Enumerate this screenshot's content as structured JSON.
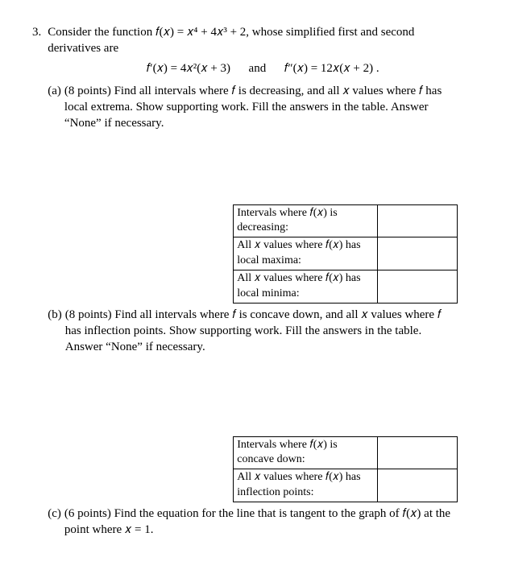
{
  "problem": {
    "number": "3.",
    "stem_line1": "Consider the function 𝑓(𝑥) = 𝑥⁴ + 4𝑥³ + 2, whose simplified first and second",
    "stem_line2": "derivatives are",
    "deriv1": "𝑓′(𝑥) = 4𝑥²(𝑥 + 3)",
    "and": "and",
    "deriv2": "𝑓″(𝑥) =  12𝑥(𝑥 + 2) ."
  },
  "partA": {
    "label": "(a)",
    "points": "(8 points)",
    "text1": "Find all intervals where 𝑓 is decreasing, and all 𝑥 values where 𝑓 has",
    "text2": "local extrema. Show supporting work. Fill the answers in the table. Answer",
    "text3": "“None” if necessary.",
    "table": {
      "row1": "Intervals where 𝑓(𝑥) is decreasing:",
      "row2": "All 𝑥 values where 𝑓(𝑥) has local maxima:",
      "row3": "All 𝑥 values where 𝑓(𝑥) has local minima:",
      "val1": "",
      "val2": "",
      "val3": ""
    }
  },
  "partB": {
    "label": "(b)",
    "points": "(8 points)",
    "text1": "Find all intervals where 𝑓 is concave down, and all 𝑥 values where 𝑓",
    "text2": "has inflection points. Show supporting work. Fill the answers in the table.",
    "text3": "Answer “None” if necessary.",
    "table": {
      "row1": "Intervals where 𝑓(𝑥) is concave down:",
      "row2": "All 𝑥 values where 𝑓(𝑥) has inflection points:",
      "val1": "",
      "val2": ""
    }
  },
  "partC": {
    "label": "(c)",
    "points": "(6 points)",
    "text1": "Find the equation for the line that is tangent to the graph of 𝑓(𝑥) at the",
    "text2": "point where 𝑥 = 1."
  }
}
